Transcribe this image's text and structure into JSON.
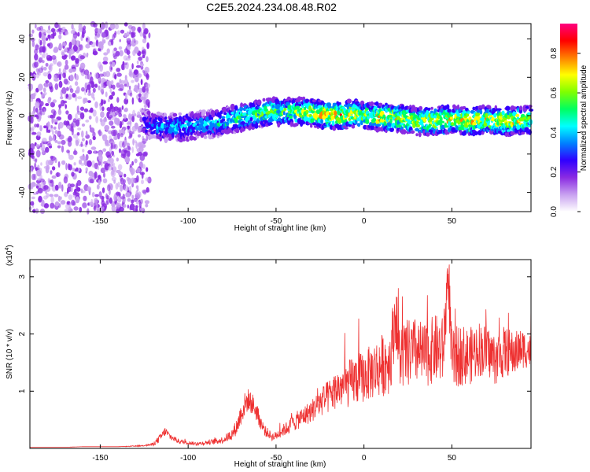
{
  "title": "C2E5.2024.234.08.48.R02",
  "chart_data": [
    {
      "type": "heatmap",
      "xlabel": "Height of straight line (km)",
      "ylabel": "Frequency (Hz)",
      "xlim": [
        -190,
        95
      ],
      "ylim": [
        -50,
        48
      ],
      "xticks": [
        -150,
        -100,
        -50,
        0,
        50
      ],
      "yticks": [
        -40,
        -20,
        0,
        20,
        40
      ],
      "colorbar": {
        "label": "Normalized spectral amplitude",
        "range": [
          0,
          0.95
        ],
        "ticks": [
          "0.0",
          "0.2",
          "0.4",
          "0.6",
          "0.8"
        ],
        "tick_values": [
          0.0,
          0.2,
          0.4,
          0.6,
          0.8
        ],
        "colormap": [
          "#ffffff",
          "#c8a0f0",
          "#8a2be2",
          "#3000ff",
          "#0080ff",
          "#00ffff",
          "#00ff60",
          "#80ff00",
          "#ffff00",
          "#ff8000",
          "#ff0000",
          "#ff0080"
        ]
      },
      "noise_region": {
        "x": [
          -190,
          -122
        ],
        "y": [
          -50,
          48
        ],
        "amplitude": 0.15
      },
      "ridge": {
        "x": [
          -125,
          -115,
          -105,
          -95,
          -85,
          -75,
          -65,
          -55,
          -45,
          -35,
          -25,
          -15,
          -5,
          0,
          10,
          20,
          30,
          40,
          50,
          60,
          70,
          80,
          95
        ],
        "y": [
          -4,
          -6,
          -6,
          -5,
          -4,
          -2,
          0,
          2,
          2,
          2,
          1,
          0,
          1,
          0,
          -1,
          -1,
          -3,
          -3,
          -2,
          -3,
          -2,
          -3,
          -2
        ],
        "amplitude": [
          0.3,
          0.4,
          0.45,
          0.4,
          0.45,
          0.5,
          0.55,
          0.6,
          0.6,
          0.65,
          0.75,
          0.8,
          0.7,
          0.6,
          0.75,
          0.7,
          0.65,
          0.7,
          0.7,
          0.75,
          0.7,
          0.75,
          0.7
        ]
      }
    },
    {
      "type": "line",
      "xlabel": "Height of straight line (km)",
      "ylabel": "SNR (10 * v/v)",
      "scale_label": "(x10",
      "scale_exponent": "4",
      "scale_close": ")",
      "xlim": [
        -190,
        95
      ],
      "ylim": [
        0,
        3.3
      ],
      "xticks": [
        -150,
        -100,
        -50,
        0,
        50
      ],
      "yticks": [
        1,
        2,
        3
      ],
      "color": "#ee3030",
      "series": [
        {
          "x": [
            -190,
            -180,
            -170,
            -160,
            -150,
            -140,
            -130,
            -125,
            -120,
            -117,
            -115,
            -113,
            -110,
            -105,
            -100,
            -95,
            -90,
            -85,
            -80,
            -75,
            -72,
            -70,
            -68,
            -66,
            -64,
            -62,
            -60,
            -58,
            -56,
            -54,
            -52,
            -50,
            -47,
            -44,
            -40,
            -35,
            -30,
            -25,
            -20,
            -15,
            -10,
            -5,
            0,
            5,
            10,
            15,
            18,
            20,
            25,
            30,
            35,
            40,
            45,
            48,
            50,
            55,
            60,
            65,
            70,
            75,
            80,
            85,
            90,
            95
          ],
          "y": [
            0.02,
            0.02,
            0.02,
            0.03,
            0.03,
            0.03,
            0.04,
            0.05,
            0.07,
            0.15,
            0.22,
            0.3,
            0.2,
            0.12,
            0.1,
            0.08,
            0.1,
            0.12,
            0.15,
            0.25,
            0.4,
            0.6,
            0.75,
            0.85,
            0.8,
            0.7,
            0.55,
            0.4,
            0.3,
            0.25,
            0.2,
            0.22,
            0.3,
            0.35,
            0.45,
            0.55,
            0.65,
            0.8,
            0.9,
            1.05,
            1.1,
            1.2,
            1.25,
            1.35,
            1.45,
            1.55,
            2.4,
            1.6,
            1.65,
            1.7,
            1.6,
            1.75,
            1.7,
            3.1,
            1.5,
            1.65,
            1.6,
            1.75,
            1.7,
            1.55,
            1.7,
            1.65,
            1.75,
            1.7
          ],
          "jitter": [
            0.0,
            0.0,
            0.0,
            0.0,
            0.0,
            0.0,
            0.01,
            0.01,
            0.03,
            0.06,
            0.08,
            0.08,
            0.06,
            0.04,
            0.03,
            0.03,
            0.04,
            0.05,
            0.06,
            0.1,
            0.15,
            0.2,
            0.22,
            0.2,
            0.2,
            0.18,
            0.15,
            0.12,
            0.1,
            0.08,
            0.07,
            0.08,
            0.1,
            0.12,
            0.15,
            0.18,
            0.2,
            0.25,
            0.3,
            0.35,
            0.4,
            0.45,
            0.45,
            0.5,
            0.55,
            0.6,
            0.6,
            0.6,
            0.6,
            0.6,
            0.55,
            0.6,
            0.6,
            0.6,
            0.55,
            0.55,
            0.5,
            0.5,
            0.45,
            0.45,
            0.45,
            0.4,
            0.35,
            0.3
          ]
        }
      ]
    }
  ]
}
